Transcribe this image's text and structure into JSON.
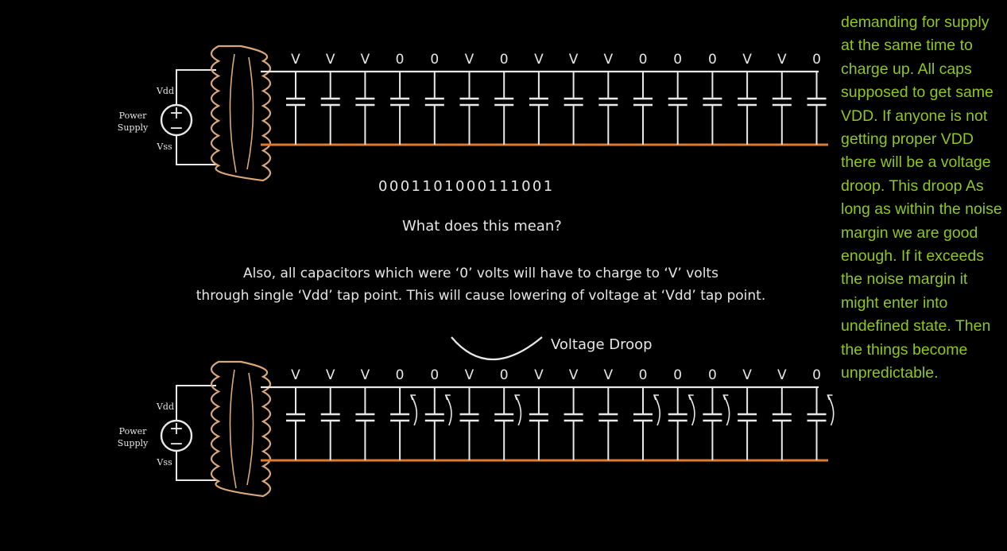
{
  "diagram_top": {
    "vdd_label": "Vdd",
    "vss_label": "Vss",
    "source_label": [
      "Power",
      "Supply"
    ],
    "cap_voltages": [
      "V",
      "V",
      "V",
      "0",
      "0",
      "V",
      "0",
      "V",
      "V",
      "V",
      "0",
      "0",
      "0",
      "V",
      "V",
      "0"
    ]
  },
  "bit_pattern": "0001101000111001",
  "question": "What does this mean?",
  "note_line1": "Also, all capacitors which were ‘0’ volts will have to charge to ‘V’ volts",
  "note_line2": "through single ‘Vdd’ tap point. This will cause lowering of voltage at ‘Vdd’ tap point.",
  "diagram_bottom": {
    "vdd_label": "Vdd",
    "vss_label": "Vss",
    "source_label": [
      "Power",
      "Supply"
    ],
    "cap_voltages": [
      "V",
      "V",
      "V",
      "0",
      "0",
      "V",
      "0",
      "V",
      "V",
      "V",
      "0",
      "0",
      "0",
      "V",
      "V",
      "0"
    ],
    "droop_label": "Voltage Droop"
  },
  "sidebar_text": "demanding for supply at the same time to charge up. All caps supposed to get same VDD. If anyone is not getting proper VDD there will be a voltage droop. This droop As long as within the noise margin we are good enough. If it exceeds the noise margin it might enter into undefined state. Then the things become unpredictable.",
  "colors": {
    "rail": "#e07a2c",
    "wire": "#e8e8e8",
    "cloud": "#d9a77a",
    "annotation": "#8fc81c"
  }
}
